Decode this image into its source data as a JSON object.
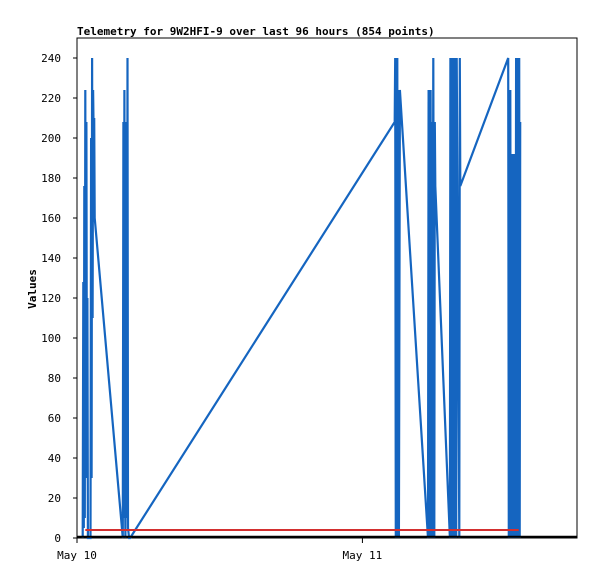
{
  "chart_data": {
    "type": "line",
    "title": "Telemetry for 9W2HFI-9 over last 96 hours (854 points)",
    "xlabel": "",
    "ylabel": "Values",
    "ylim": [
      0,
      240
    ],
    "y_ticks": [
      0,
      20,
      40,
      60,
      80,
      100,
      120,
      140,
      160,
      180,
      200,
      220,
      240
    ],
    "x_range_hours": [
      0,
      48
    ],
    "x_ticks": [
      {
        "label": "May 10",
        "hours": 0
      },
      {
        "label": "May 11",
        "hours": 27.4
      }
    ],
    "grid": false,
    "legend": "none",
    "series": [
      {
        "color": "#1565c0",
        "points": [
          [
            0.55,
            0
          ],
          [
            0.6,
            128
          ],
          [
            0.65,
            5
          ],
          [
            0.7,
            176
          ],
          [
            0.75,
            10
          ],
          [
            0.8,
            224
          ],
          [
            0.85,
            30
          ],
          [
            0.9,
            208
          ],
          [
            0.95,
            50
          ],
          [
            1.0,
            120
          ],
          [
            1.05,
            0
          ],
          [
            1.3,
            0
          ],
          [
            1.35,
            200
          ],
          [
            1.4,
            30
          ],
          [
            1.45,
            240
          ],
          [
            1.5,
            110
          ],
          [
            1.55,
            224
          ],
          [
            1.6,
            200
          ],
          [
            1.65,
            210
          ],
          [
            1.7,
            160
          ],
          [
            4.4,
            0
          ],
          [
            4.45,
            208
          ],
          [
            4.5,
            10
          ],
          [
            4.55,
            224
          ],
          [
            4.6,
            40
          ],
          [
            4.65,
            0
          ],
          [
            4.7,
            56
          ],
          [
            4.75,
            208
          ],
          [
            4.8,
            10
          ],
          [
            4.85,
            240
          ],
          [
            4.9,
            5
          ],
          [
            5.0,
            0
          ],
          [
            5.1,
            0
          ],
          [
            30.5,
            208
          ],
          [
            30.55,
            240
          ],
          [
            30.6,
            0
          ],
          [
            30.65,
            224
          ],
          [
            30.7,
            0
          ],
          [
            30.75,
            240
          ],
          [
            30.8,
            10
          ],
          [
            30.85,
            224
          ],
          [
            30.9,
            0
          ],
          [
            31.0,
            224
          ],
          [
            33.7,
            0
          ],
          [
            33.75,
            224
          ],
          [
            33.8,
            0
          ],
          [
            33.85,
            208
          ],
          [
            33.9,
            0
          ],
          [
            33.95,
            224
          ],
          [
            34.0,
            10
          ],
          [
            34.05,
            208
          ],
          [
            34.1,
            0
          ],
          [
            34.2,
            240
          ],
          [
            34.3,
            0
          ],
          [
            34.35,
            208
          ],
          [
            34.4,
            176
          ],
          [
            35.8,
            0
          ],
          [
            35.85,
            240
          ],
          [
            35.9,
            0
          ],
          [
            35.95,
            240
          ],
          [
            36.0,
            0
          ],
          [
            36.05,
            240
          ],
          [
            36.1,
            5
          ],
          [
            36.15,
            240
          ],
          [
            36.2,
            0
          ],
          [
            36.25,
            224
          ],
          [
            36.3,
            0
          ],
          [
            36.35,
            240
          ],
          [
            36.4,
            0
          ],
          [
            36.45,
            240
          ],
          [
            36.7,
            0
          ],
          [
            36.75,
            240
          ],
          [
            36.8,
            176
          ],
          [
            41.4,
            240
          ],
          [
            41.45,
            0
          ],
          [
            41.5,
            224
          ],
          [
            41.55,
            0
          ],
          [
            41.6,
            224
          ],
          [
            41.65,
            0
          ],
          [
            41.7,
            184
          ],
          [
            41.75,
            0
          ],
          [
            41.8,
            192
          ],
          [
            41.85,
            0
          ],
          [
            41.9,
            192
          ],
          [
            41.95,
            0
          ],
          [
            42.0,
            192
          ],
          [
            42.1,
            0
          ],
          [
            42.15,
            240
          ],
          [
            42.2,
            0
          ],
          [
            42.25,
            240
          ],
          [
            42.3,
            5
          ],
          [
            42.35,
            240
          ],
          [
            42.4,
            0
          ],
          [
            42.45,
            240
          ],
          [
            42.5,
            0
          ],
          [
            42.55,
            208
          ]
        ]
      },
      {
        "color": "#d32f2f",
        "points": [
          [
            0.8,
            4
          ],
          [
            42.4,
            4
          ]
        ]
      },
      {
        "color": "#000000",
        "points": [
          [
            0.0,
            0.6
          ],
          [
            48,
            0.6
          ]
        ]
      }
    ]
  }
}
